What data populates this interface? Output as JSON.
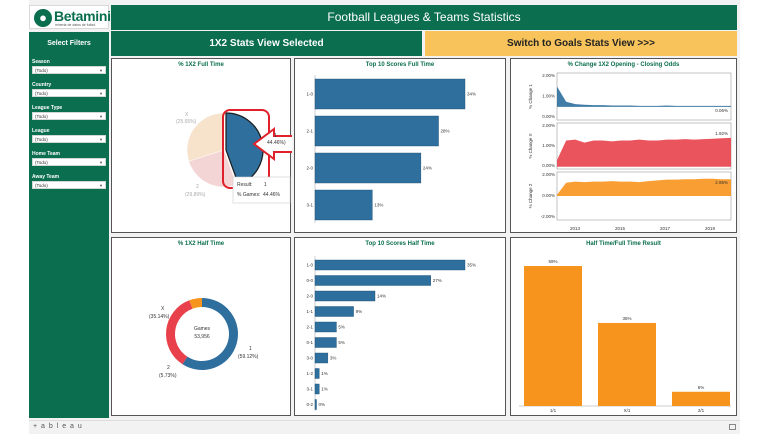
{
  "logo": {
    "text": "Betaminic",
    "tagline": "mineria de datos de futbol",
    "icon": "ball-logo-icon"
  },
  "header": {
    "title": "Football Leagues & Teams Statistics"
  },
  "sidebar": {
    "title": "Select Filters",
    "filters": [
      {
        "label": "Season",
        "value": "(Todo)"
      },
      {
        "label": "Country",
        "value": "(Todo)"
      },
      {
        "label": "League Type",
        "value": "(Todo)"
      },
      {
        "label": "League",
        "value": "(Todo)"
      },
      {
        "label": "Home Team",
        "value": "(Todo)"
      },
      {
        "label": "Away Team",
        "value": "(Todo)"
      }
    ]
  },
  "view_buttons": {
    "selected": "1X2 Stats View Selected",
    "switch": "Switch to Goals Stats View >>>"
  },
  "colors": {
    "green": "#0b6e4f",
    "blue": "#2e6f9e",
    "red": "#e8414b",
    "orange": "#f7941d",
    "gold": "#f7c35a",
    "highlight": "#e0202a"
  },
  "panels": {
    "ft_pie": {
      "title": "% 1X2 Full Time",
      "labels": {
        "x": "X",
        "x_pct": "(25.65%)",
        "one": "1",
        "one_pct": "44.46%)",
        "two": "2",
        "two_pct": "(29.89%)"
      },
      "tooltip": {
        "result_label": "Result:",
        "result_value": "1",
        "games_label": "% Games:",
        "games_value": "44.46%"
      }
    },
    "ft_scores": {
      "title": "Top 10 Scores Full Time"
    },
    "odds_change": {
      "title": "% Change 1X2 Opening - Closing Odds"
    },
    "ht_donut": {
      "title": "% 1X2 Half Time",
      "center_label": "Games",
      "center_value": "53,956",
      "labels": {
        "x": "X",
        "x_pct": "(35.14%)",
        "one": "1",
        "one_pct": "(59.12%)",
        "two": "2",
        "two_pct": "(5.73%)"
      }
    },
    "ht_scores": {
      "title": "Top 10 Scores Half Time"
    },
    "htft": {
      "title": "Half Time/Full Time Result"
    }
  },
  "chart_data": [
    {
      "type": "pie",
      "title": "% 1X2 Full Time",
      "categories": [
        "1",
        "X",
        "2"
      ],
      "values": [
        44.46,
        25.65,
        29.89
      ],
      "highlighted": "1"
    },
    {
      "type": "bar",
      "title": "Top 10 Scores Full Time",
      "orientation": "horizontal",
      "categories": [
        "1-0",
        "2-1",
        "2-0",
        "3-1"
      ],
      "values": [
        34,
        28,
        24,
        13
      ],
      "value_labels": [
        "34%",
        "28%",
        "24%",
        "13%"
      ]
    },
    {
      "type": "area",
      "title": "% Change 1X2 Opening - Closing Odds",
      "x_ticks": [
        "2013",
        "2015",
        "2017",
        "2019"
      ],
      "series": [
        {
          "name": "% Change 1",
          "y_ticks": [
            "2.00%",
            "1.00%",
            "0.00%"
          ],
          "last_label": "0.06%"
        },
        {
          "name": "% Change X",
          "y_ticks": [
            "2.00%",
            "1.00%",
            "0.00%"
          ],
          "last_label": "1.92%"
        },
        {
          "name": "% Change 2",
          "y_ticks": [
            "2.00%",
            "0.00%",
            "-2.00%"
          ],
          "last_label": "2.95%"
        }
      ]
    },
    {
      "type": "pie",
      "title": "% 1X2 Half Time",
      "categories": [
        "1",
        "X",
        "2"
      ],
      "values": [
        59.12,
        35.14,
        5.73
      ]
    },
    {
      "type": "bar",
      "title": "Top 10 Scores Half Time",
      "orientation": "horizontal",
      "categories": [
        "1-0",
        "0-0",
        "2-0",
        "1-1",
        "2-1",
        "0-1",
        "3-0",
        "1-2",
        "3-1",
        "0-2"
      ],
      "values": [
        35,
        27,
        14,
        9,
        5,
        5,
        3,
        1,
        1,
        0
      ],
      "value_labels": [
        "35%",
        "27%",
        "14%",
        "9%",
        "5%",
        "5%",
        "3%",
        "1%",
        "1%",
        "0%"
      ]
    },
    {
      "type": "bar",
      "title": "Half Time/Full Time Result",
      "categories": [
        "1/1",
        "X/1",
        "2/1"
      ],
      "values": [
        59,
        35,
        6
      ],
      "value_labels": [
        "59%",
        "35%",
        "6%"
      ]
    }
  ],
  "footer": {
    "brand": "+ a b l e a u"
  }
}
